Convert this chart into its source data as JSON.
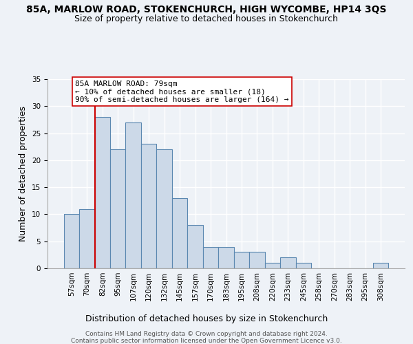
{
  "title": "85A, MARLOW ROAD, STOKENCHURCH, HIGH WYCOMBE, HP14 3QS",
  "subtitle": "Size of property relative to detached houses in Stokenchurch",
  "xlabel": "Distribution of detached houses by size in Stokenchurch",
  "ylabel": "Number of detached properties",
  "bar_labels": [
    "57sqm",
    "70sqm",
    "82sqm",
    "95sqm",
    "107sqm",
    "120sqm",
    "132sqm",
    "145sqm",
    "157sqm",
    "170sqm",
    "183sqm",
    "195sqm",
    "208sqm",
    "220sqm",
    "233sqm",
    "245sqm",
    "258sqm",
    "270sqm",
    "283sqm",
    "295sqm",
    "308sqm"
  ],
  "bar_values": [
    10,
    11,
    28,
    22,
    27,
    23,
    22,
    13,
    8,
    4,
    4,
    3,
    3,
    1,
    2,
    1,
    0,
    0,
    0,
    0,
    1
  ],
  "bar_color": "#ccd9e8",
  "bar_edge_color": "#5a87b0",
  "property_line_x": 2,
  "property_line_color": "#cc0000",
  "ylim": [
    0,
    35
  ],
  "yticks": [
    0,
    5,
    10,
    15,
    20,
    25,
    30,
    35
  ],
  "annotation_text": "85A MARLOW ROAD: 79sqm\n← 10% of detached houses are smaller (18)\n90% of semi-detached houses are larger (164) →",
  "annotation_box_color": "#ffffff",
  "annotation_box_edge": "#cc0000",
  "footer_line1": "Contains HM Land Registry data © Crown copyright and database right 2024.",
  "footer_line2": "Contains public sector information licensed under the Open Government Licence v3.0.",
  "background_color": "#eef2f7",
  "grid_color": "#ffffff",
  "title_fontsize": 10,
  "subtitle_fontsize": 9,
  "ylabel_fontsize": 9,
  "xlabel_fontsize": 9,
  "tick_fontsize": 7.5,
  "annotation_fontsize": 8,
  "footer_fontsize": 6.5
}
